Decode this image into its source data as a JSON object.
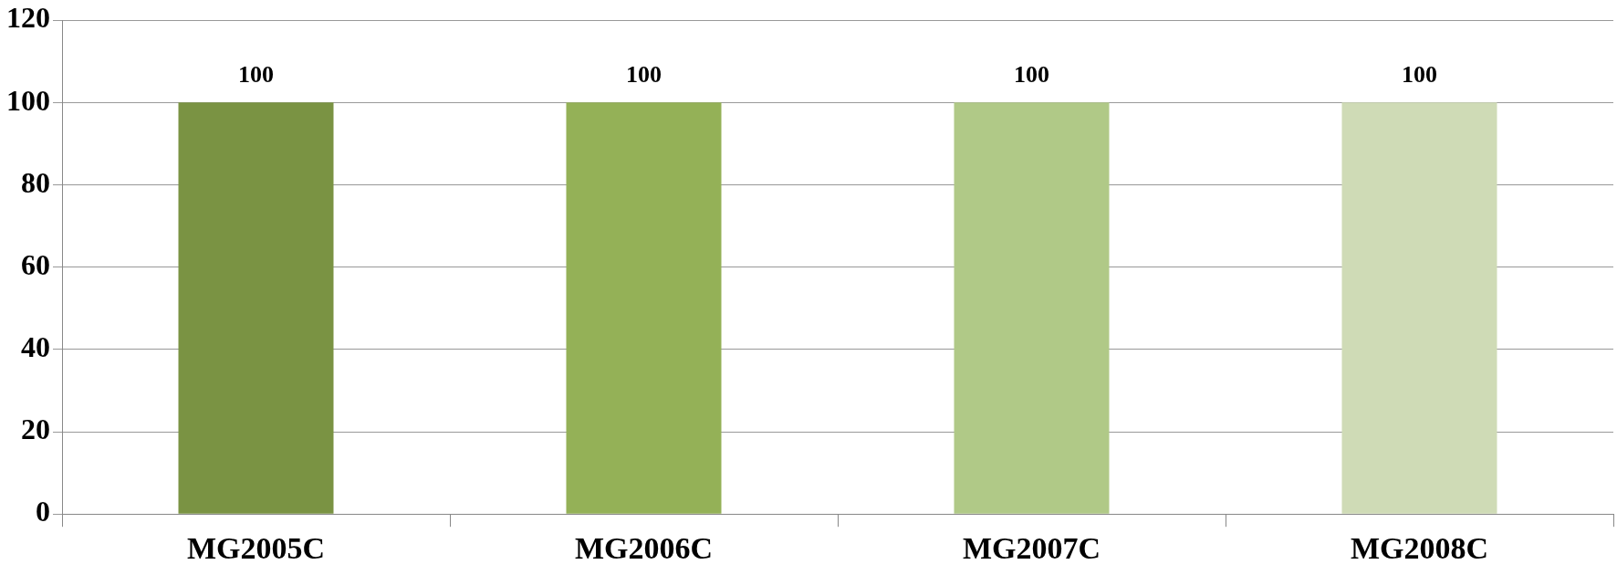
{
  "chart_data": {
    "type": "bar",
    "categories": [
      "MG2005C",
      "MG2006C",
      "MG2007C",
      "MG2008C"
    ],
    "values": [
      100,
      100,
      100,
      100
    ],
    "colors": [
      "#7a9343",
      "#94b157",
      "#b0c987",
      "#cfdbb6"
    ],
    "ylim": [
      0,
      120
    ],
    "yticks": [
      0,
      20,
      40,
      60,
      80,
      100,
      120
    ],
    "grid": "y",
    "data_labels": true
  }
}
